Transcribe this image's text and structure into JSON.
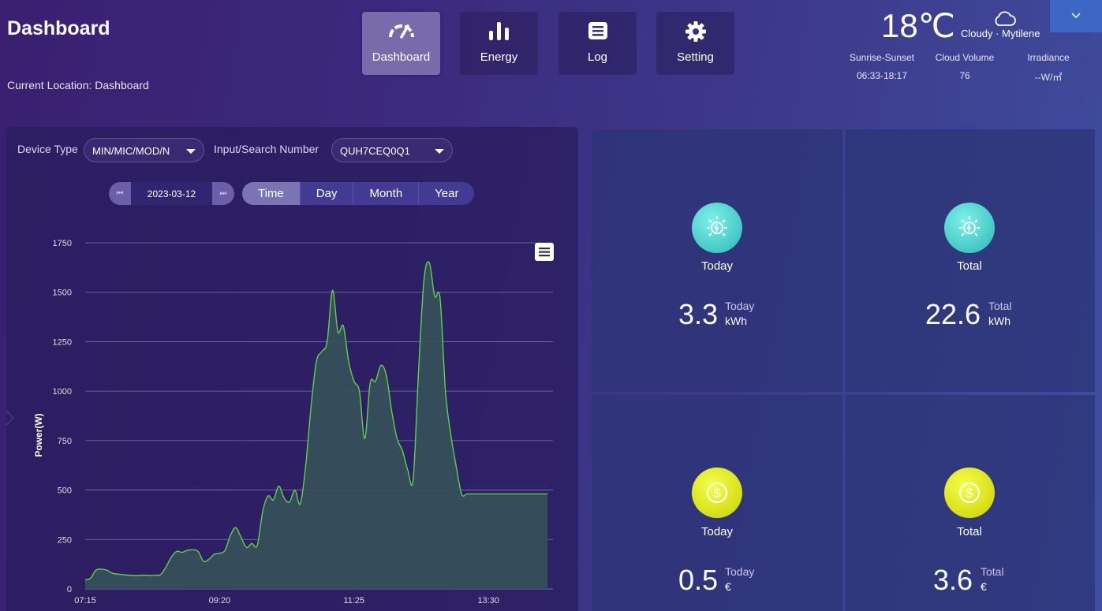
{
  "header": {
    "title": "Dashboard",
    "location": "Current Location: Dashboard"
  },
  "nav": [
    {
      "label": "Dashboard",
      "icon": "gauge-icon"
    },
    {
      "label": "Energy",
      "icon": "bar-chart-icon"
    },
    {
      "label": "Log",
      "icon": "log-icon"
    },
    {
      "label": "Setting",
      "icon": "gear-icon"
    }
  ],
  "weather": {
    "temp": "18℃",
    "desc": "Cloudy · Mytilene",
    "sunrise_label": "Sunrise-Sunset",
    "sunrise_value": "06:33-18:17",
    "cloud_label": "Cloud Volume",
    "cloud_value": "76",
    "irr_label": "Irradiance",
    "irr_value": "--W/㎡"
  },
  "filters": {
    "device_label": "Device Type",
    "device_value": "MIN/MIC/MOD/N",
    "search_label": "Input/Search Number",
    "search_value": "QUH7CEQ0Q1",
    "date": "2023-03-12",
    "ranges": [
      "Time",
      "Day",
      "Month",
      "Year"
    ],
    "active_range": "Time"
  },
  "chart_data": {
    "type": "area",
    "ylabel": "Power(W)",
    "ylim": [
      0,
      1750
    ],
    "yticks": [
      "0",
      "250",
      "500",
      "750",
      "1000",
      "1250",
      "1500",
      "1750"
    ],
    "xticks": [
      "07:15",
      "09:20",
      "11:25",
      "13:30"
    ],
    "x_minutes": [
      435,
      440,
      445,
      450,
      455,
      460,
      465,
      470,
      475,
      480,
      485,
      490,
      495,
      500,
      505,
      510,
      515,
      520,
      525,
      530,
      535,
      540,
      545,
      550,
      555,
      560,
      565,
      570,
      575,
      580,
      585,
      590,
      595,
      600,
      605,
      610,
      615,
      620,
      625,
      630,
      635,
      640,
      645,
      650,
      655,
      660,
      665,
      670,
      675,
      680,
      685,
      690,
      695,
      700,
      705,
      710,
      715,
      720,
      725,
      730,
      735,
      740,
      745,
      750,
      755,
      760,
      765,
      770,
      775,
      780,
      785,
      790,
      795,
      800,
      805,
      810,
      815,
      820,
      825,
      830,
      835,
      840,
      845,
      850,
      855,
      860,
      865
    ],
    "values": [
      45,
      55,
      95,
      100,
      95,
      80,
      75,
      72,
      70,
      68,
      68,
      70,
      68,
      70,
      72,
      110,
      160,
      190,
      185,
      195,
      198,
      190,
      140,
      150,
      175,
      180,
      195,
      270,
      310,
      260,
      210,
      230,
      220,
      390,
      470,
      450,
      520,
      460,
      440,
      500,
      430,
      620,
      920,
      1150,
      1200,
      1250,
      1510,
      1300,
      1330,
      1150,
      1050,
      1000,
      760,
      1040,
      1050,
      1130,
      1080,
      900,
      760,
      700,
      600,
      555,
      1100,
      1560,
      1650,
      1480,
      1470,
      1000,
      780,
      620,
      480,
      480,
      480,
      480,
      480,
      480,
      480,
      480,
      480,
      480,
      480,
      480,
      480,
      480,
      480,
      480,
      480
    ],
    "series": [
      {
        "name": "",
        "color": "#5ed14a"
      }
    ]
  },
  "stats": [
    {
      "label": "Today",
      "value": "3.3",
      "unit_label": "Today",
      "unit": "kWh",
      "icon": "solar-icon"
    },
    {
      "label": "Total",
      "value": "22.6",
      "unit_label": "Total",
      "unit": "kWh",
      "icon": "solar-icon"
    },
    {
      "label": "Today",
      "value": "0.5",
      "unit_label": "Today",
      "unit": "€",
      "icon": "dollar-icon"
    },
    {
      "label": "Total",
      "value": "3.6",
      "unit_label": "Total",
      "unit": "€",
      "icon": "dollar-icon"
    }
  ]
}
